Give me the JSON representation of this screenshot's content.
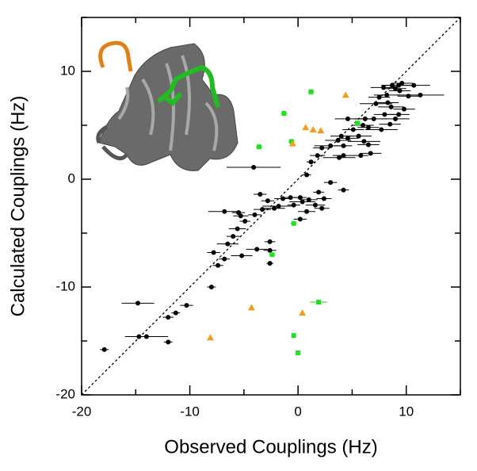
{
  "chart_data": {
    "type": "scatter",
    "xlabel": "Observed Couplings (Hz)",
    "ylabel": "Calculated Couplings (Hz)",
    "xlim": [
      -20,
      15
    ],
    "ylim": [
      -20,
      15
    ],
    "xticks": [
      -20,
      -10,
      0,
      10
    ],
    "yticks": [
      -20,
      -10,
      0,
      10
    ],
    "xminorticks": [
      -15,
      -5,
      5,
      15
    ],
    "yminorticks": [
      -15,
      -5,
      5,
      15
    ],
    "diagonal": true,
    "series": [
      {
        "color": "#000000",
        "marker": "circle",
        "x": [
          -17.9,
          -14.8,
          -14.7,
          -14.0,
          -12.0,
          -12.0,
          -11.3,
          -10.3,
          -8.0,
          -7.4,
          -7.8,
          -6.8,
          -6.5,
          -6.0,
          -5.6,
          -5.3,
          -6.8,
          -5.5,
          -4.9,
          -5.2,
          -3.8,
          -2.6,
          -2.6,
          -2.6,
          -4.0,
          -3.3,
          -2.8,
          -2.2,
          -1.8,
          -1.4,
          -0.7,
          -0.4,
          0.4,
          1.0,
          0.8,
          0.2,
          0.2,
          1.6,
          2.4,
          2.2,
          1.9,
          -3.5,
          4.2,
          3.0,
          0.8,
          1.2,
          -4.1,
          1.8,
          2.2,
          3.0,
          3.7,
          4.2,
          4.2,
          4.0,
          4.6,
          5.1,
          5.6,
          6.1,
          6.5,
          6.7,
          5.8,
          6.0,
          6.5,
          7.0,
          7.7,
          8.5,
          8.0,
          8.6,
          9.0,
          8.3,
          7.2,
          7.5,
          8.2,
          8.7,
          9.3,
          9.6,
          10.7,
          11.3,
          10.2,
          9.4,
          9.0,
          7.9,
          9.8,
          9.3,
          6.2,
          4.6,
          3.8
        ],
        "values": [
          -15.8,
          -11.5,
          -14.6,
          -14.6,
          -15.1,
          -12.8,
          -12.4,
          -11.7,
          -10.0,
          -8.0,
          -6.8,
          -7.4,
          -6.0,
          -5.3,
          -4.6,
          -3.4,
          -3.0,
          -3.1,
          -3.9,
          -7.1,
          -6.5,
          -6.6,
          -5.8,
          -7.8,
          -3.3,
          -2.8,
          -2.0,
          -2.7,
          -2.5,
          -1.8,
          -1.7,
          -2.4,
          -2.1,
          -1.9,
          -3.0,
          -3.7,
          -1.7,
          -2.4,
          -1.8,
          -2.7,
          -1.2,
          -1.4,
          -1.0,
          -0.3,
          0.4,
          1.6,
          1.1,
          2.2,
          2.9,
          3.1,
          3.6,
          3.1,
          2.2,
          4.0,
          3.8,
          4.6,
          4.0,
          3.5,
          3.2,
          2.4,
          2.2,
          5.0,
          4.8,
          5.6,
          4.6,
          5.1,
          6.0,
          6.7,
          5.6,
          7.1,
          7.0,
          7.6,
          7.8,
          8.7,
          8.7,
          8.9,
          8.7,
          7.8,
          7.7,
          8.2,
          8.4,
          8.5,
          6.5,
          6.0,
          5.6,
          5.6,
          2.0
        ],
        "xerr": [
          0.4,
          1.5,
          0.6,
          2.0,
          0.4,
          0.5,
          0.4,
          0.6,
          0.4,
          0.5,
          0.6,
          0.5,
          1.0,
          0.6,
          0.8,
          0.7,
          1.5,
          0.6,
          0.5,
          1.0,
          1.0,
          0.6,
          0.5,
          0.3,
          0.6,
          0.8,
          0.6,
          1.0,
          1.5,
          0.8,
          0.6,
          0.6,
          1.2,
          0.8,
          0.8,
          0.6,
          0.6,
          0.9,
          0.7,
          0.7,
          0.5,
          0.6,
          0.5,
          0.6,
          0.4,
          0.4,
          2.5,
          0.7,
          0.8,
          1.5,
          1.2,
          0.8,
          1.0,
          1.0,
          1.0,
          1.0,
          1.2,
          1.5,
          1.0,
          1.0,
          0.7,
          1.0,
          1.0,
          1.2,
          1.5,
          1.0,
          1.0,
          1.2,
          1.3,
          1.0,
          1.5,
          1.0,
          1.2,
          1.0,
          1.5,
          1.0,
          1.5,
          2.2,
          1.0,
          1.0,
          1.0,
          1.2,
          1.0,
          1.0,
          1.0,
          1.2,
          1.5
        ]
      },
      {
        "color": "#22e022",
        "marker": "square",
        "x": [
          -3.6,
          -1.3,
          1.2,
          -0.6,
          -0.4,
          -2.4,
          -0.4,
          0.0,
          1.9,
          5.5
        ],
        "values": [
          3.0,
          6.1,
          8.1,
          3.5,
          -4.1,
          -7.0,
          -14.5,
          -16.1,
          -11.4,
          5.2
        ],
        "xerr": [
          0.3,
          0.3,
          0.3,
          0.3,
          0.3,
          0.3,
          0.2,
          0.2,
          0.8,
          0.3
        ]
      },
      {
        "color": "#f0a020",
        "marker": "triangle",
        "x": [
          4.4,
          0.7,
          1.4,
          2.1,
          -0.5,
          -4.3,
          0.4,
          -8.1
        ],
        "values": [
          7.8,
          4.8,
          4.6,
          4.5,
          3.3,
          -11.9,
          -12.4,
          -14.7
        ]
      }
    ]
  }
}
